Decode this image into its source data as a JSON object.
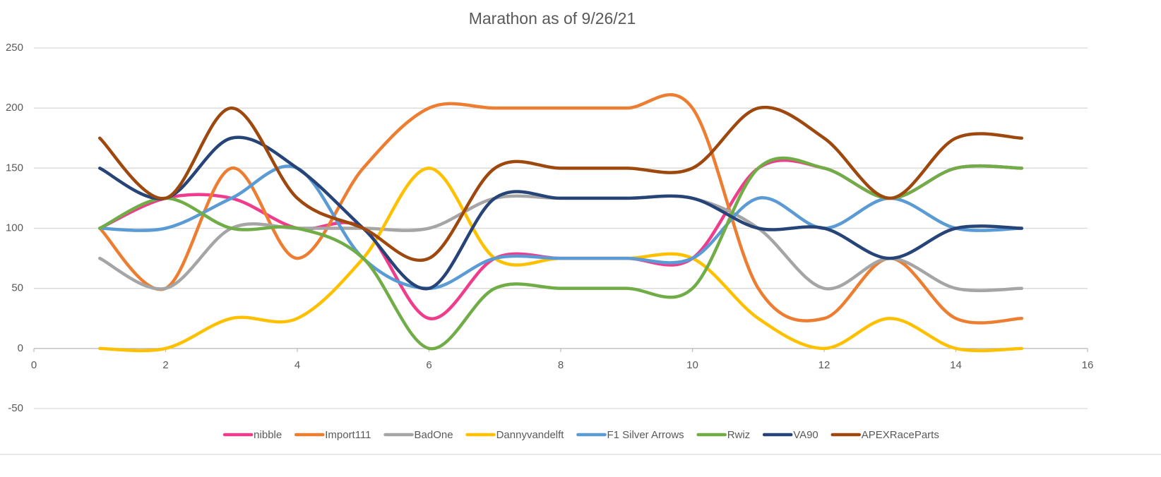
{
  "chart_data": {
    "type": "line",
    "title": "Marathon as of 9/26/21",
    "x": [
      1,
      2,
      3,
      4,
      5,
      6,
      7,
      8,
      9,
      10,
      11,
      12,
      13,
      14,
      15
    ],
    "series": [
      {
        "name": "nibble",
        "color": "#f03c8c",
        "values": [
          100,
          125,
          125,
          100,
          100,
          25,
          75,
          75,
          75,
          75,
          150,
          150,
          125,
          150,
          150
        ]
      },
      {
        "name": "Import111",
        "color": "#ed7d31",
        "values": [
          100,
          50,
          150,
          75,
          150,
          200,
          200,
          200,
          200,
          200,
          50,
          25,
          75,
          25,
          25
        ]
      },
      {
        "name": "BadOne",
        "color": "#a5a5a5",
        "values": [
          75,
          50,
          100,
          100,
          100,
          100,
          125,
          125,
          125,
          125,
          100,
          50,
          75,
          50,
          50
        ]
      },
      {
        "name": "Dannyvandelft",
        "color": "#ffc000",
        "values": [
          0,
          0,
          25,
          25,
          75,
          150,
          75,
          75,
          75,
          75,
          25,
          0,
          25,
          0,
          0
        ]
      },
      {
        "name": "F1 Silver Arrows",
        "color": "#5b9bd5",
        "values": [
          100,
          100,
          125,
          150,
          75,
          50,
          75,
          75,
          75,
          75,
          125,
          100,
          125,
          100,
          100
        ]
      },
      {
        "name": "Rwiz",
        "color": "#70ad47",
        "values": [
          100,
          125,
          100,
          100,
          75,
          0,
          50,
          50,
          50,
          50,
          150,
          150,
          125,
          150,
          150
        ]
      },
      {
        "name": "VA90",
        "color": "#264478",
        "values": [
          150,
          125,
          175,
          150,
          100,
          50,
          125,
          125,
          125,
          125,
          100,
          100,
          75,
          100,
          100
        ]
      },
      {
        "name": "APEXRaceParts",
        "color": "#9e480e",
        "values": [
          175,
          125,
          200,
          125,
          100,
          75,
          150,
          150,
          150,
          150,
          200,
          175,
          125,
          175,
          175
        ]
      }
    ],
    "xlim": [
      0,
      16
    ],
    "xticks": [
      0,
      2,
      4,
      6,
      8,
      10,
      12,
      14,
      16
    ],
    "ylim": [
      -50,
      250
    ],
    "yticks": [
      -50,
      0,
      50,
      100,
      150,
      200,
      250
    ],
    "grid": true,
    "smooth": true,
    "legend": "bottom"
  }
}
